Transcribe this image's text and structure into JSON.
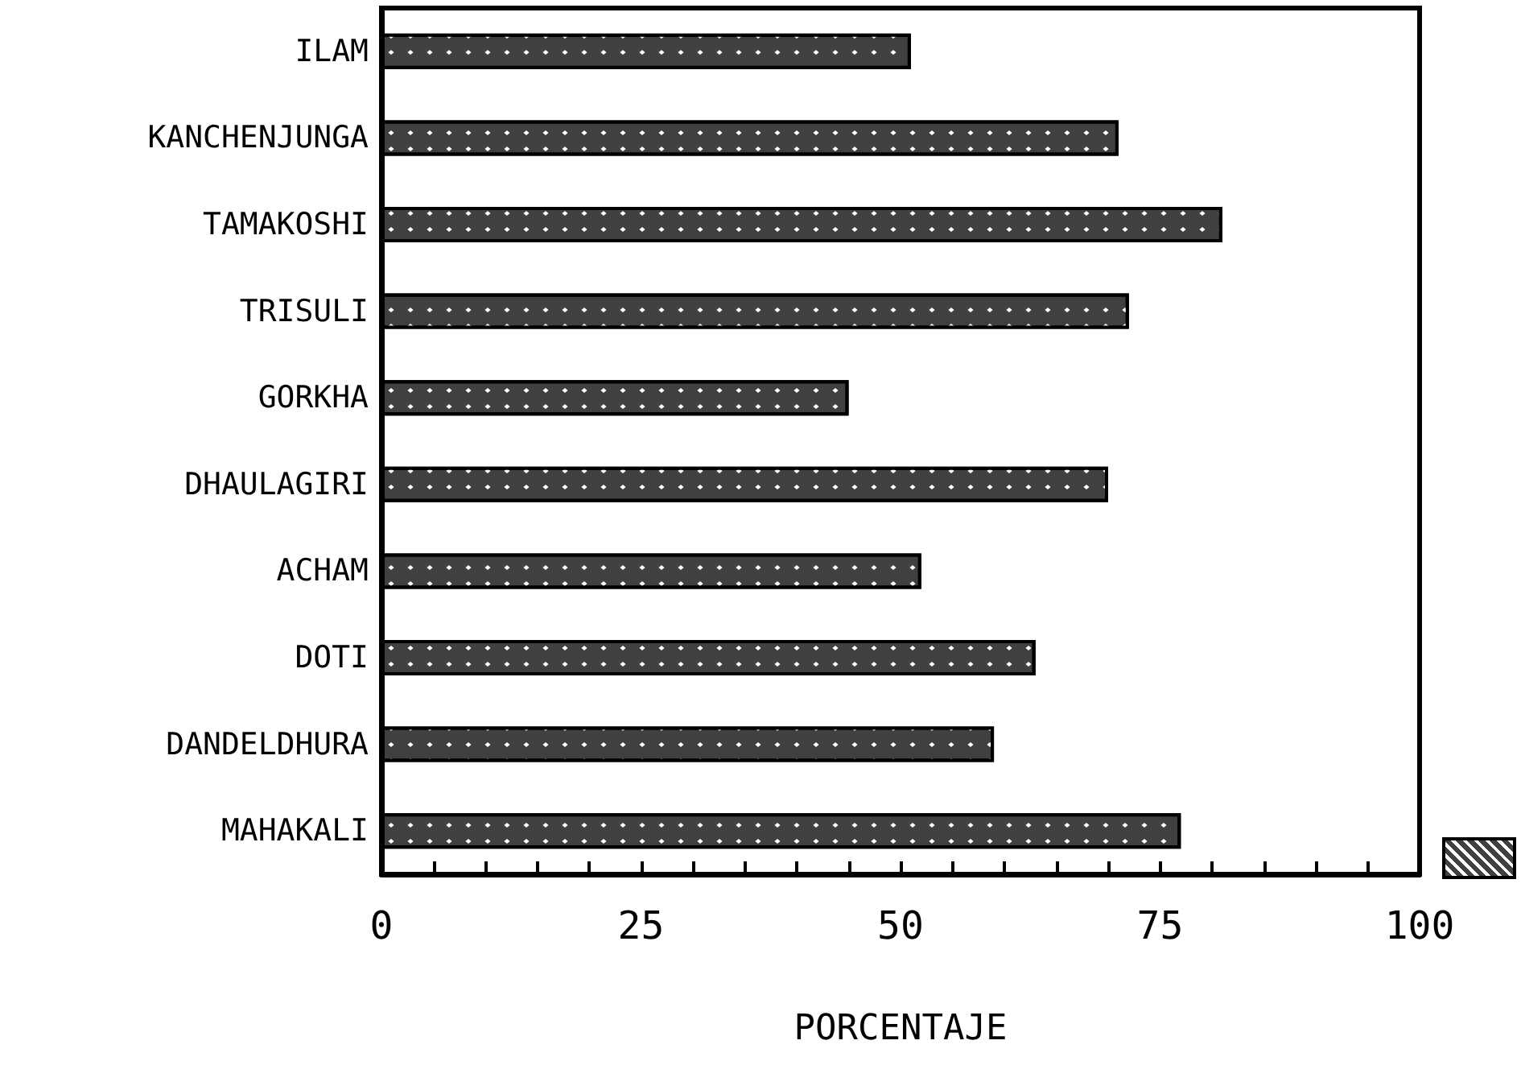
{
  "chart_data": {
    "type": "bar",
    "orientation": "horizontal",
    "xlabel": "PORCENTAJE",
    "categories": [
      "ILAM",
      "KANCHENJUNGA",
      "TAMAKOSHI",
      "TRISULI",
      "GORKHA",
      "DHAULAGIRI",
      "ACHAM",
      "DOTI",
      "DANDELDHURA",
      "MAHAKALI"
    ],
    "values": [
      51,
      71,
      81,
      72,
      45,
      70,
      52,
      63,
      59,
      77
    ],
    "color": "#404040",
    "xlim": [
      0,
      100
    ],
    "xticks": [
      0,
      {
        "value": 5,
        "label": null
      },
      {
        "value": 10,
        "label": null
      },
      {
        "value": 15,
        "label": null
      },
      {
        "value": 20,
        "label": null
      },
      25,
      {
        "value": 30,
        "label": null
      },
      {
        "value": 35,
        "label": null
      },
      {
        "value": 40,
        "label": null
      },
      {
        "value": 45,
        "label": null
      },
      50,
      {
        "value": 55,
        "label": null
      },
      {
        "value": 60,
        "label": null
      },
      {
        "value": 65,
        "label": null
      },
      {
        "value": 70,
        "label": null
      },
      75,
      {
        "value": 80,
        "label": null
      },
      {
        "value": 85,
        "label": null
      },
      {
        "value": 90,
        "label": null
      },
      {
        "value": 95,
        "label": null
      },
      100
    ],
    "grid": false
  }
}
